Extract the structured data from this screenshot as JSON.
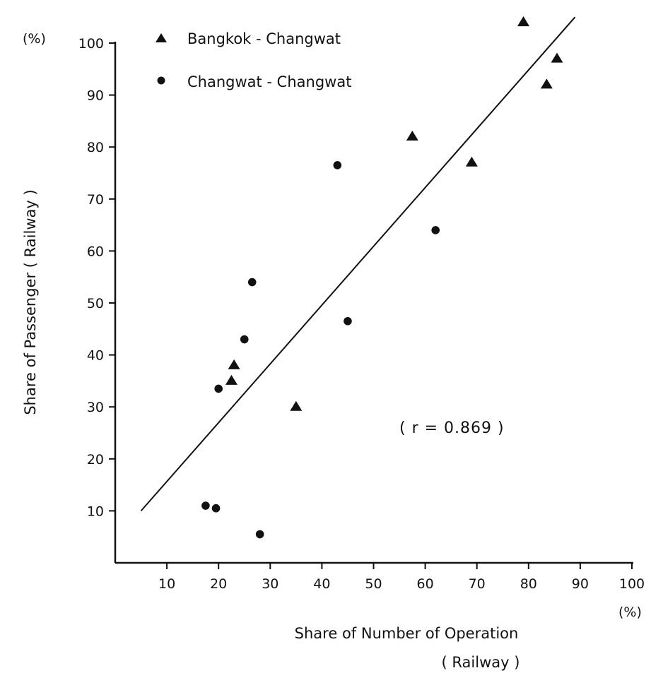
{
  "chart_data": {
    "type": "scatter",
    "xlabel": "Share of Number of Operation",
    "xlabel_line2": "( Railway )",
    "ylabel": "Share of Passenger ( Railway )",
    "x_unit": "(%)",
    "y_unit": "(%)",
    "xlim": [
      0,
      100
    ],
    "ylim": [
      0,
      100
    ],
    "x_ticks": [
      "10",
      "20",
      "30",
      "40",
      "50",
      "60",
      "70",
      "80",
      "90",
      "100"
    ],
    "y_ticks": [
      "10",
      "20",
      "30",
      "40",
      "50",
      "60",
      "70",
      "80",
      "90",
      "100"
    ],
    "grid": false,
    "legend_position": "top-left",
    "annotation": "( r = 0.869 )",
    "series": [
      {
        "name": "Bangkok - Changwat",
        "marker": "triangle",
        "points": [
          [
            79,
            104
          ],
          [
            85.5,
            97
          ],
          [
            83.5,
            92
          ],
          [
            57.5,
            82
          ],
          [
            69,
            77
          ],
          [
            23,
            38
          ],
          [
            22.5,
            35
          ],
          [
            35,
            30
          ]
        ]
      },
      {
        "name": "Changwat - Changwat",
        "marker": "circle",
        "points": [
          [
            43,
            76.5
          ],
          [
            62,
            64
          ],
          [
            26.5,
            54
          ],
          [
            45,
            46.5
          ],
          [
            25,
            43
          ],
          [
            20,
            33.5
          ],
          [
            17.5,
            11
          ],
          [
            19.5,
            10.5
          ],
          [
            28,
            5.5
          ]
        ]
      }
    ],
    "regression_line": {
      "x": [
        5,
        89
      ],
      "y": [
        10,
        105
      ]
    }
  }
}
